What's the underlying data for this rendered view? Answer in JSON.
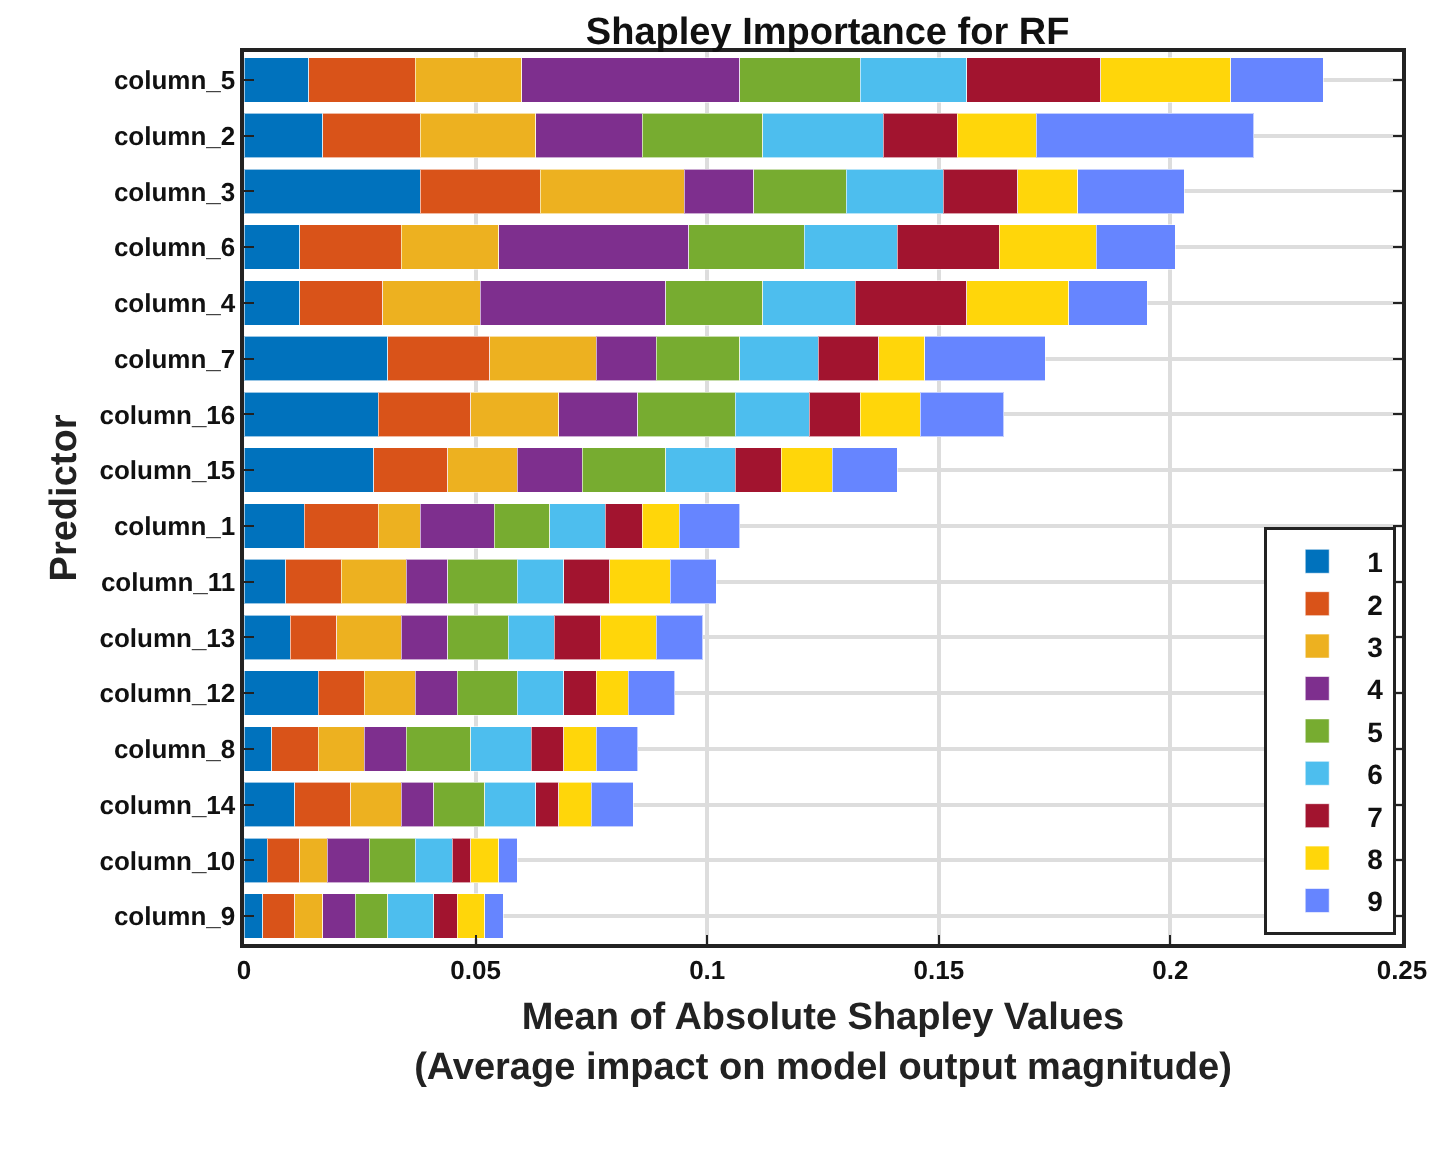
{
  "chart_data": {
    "type": "bar",
    "orientation": "horizontal",
    "stacked": true,
    "title": "Shapley Importance for RF",
    "xlabel": "Mean of Absolute Shapley Values\n(Average impact on model output magnitude)",
    "ylabel": "Predictor",
    "categories": [
      "column_5",
      "column_2",
      "column_3",
      "column_6",
      "column_4",
      "column_7",
      "column_16",
      "column_15",
      "column_1",
      "column_11",
      "column_13",
      "column_12",
      "column_8",
      "column_14",
      "column_10",
      "column_9"
    ],
    "xlim": [
      0,
      0.25
    ],
    "xticks": [
      0,
      0.05,
      0.1,
      0.15,
      0.2,
      0.25
    ],
    "grid": true,
    "legend": "bottom right",
    "series": [
      {
        "name": "1",
        "color": "#0072bd",
        "values": [
          0.014,
          0.017,
          0.038,
          0.012,
          0.012,
          0.031,
          0.029,
          0.028,
          0.013,
          0.009,
          0.01,
          0.016,
          0.006,
          0.011,
          0.005,
          0.004
        ]
      },
      {
        "name": "2",
        "color": "#d95319",
        "values": [
          0.023,
          0.021,
          0.026,
          0.022,
          0.018,
          0.022,
          0.02,
          0.016,
          0.016,
          0.012,
          0.01,
          0.01,
          0.01,
          0.012,
          0.007,
          0.007
        ]
      },
      {
        "name": "3",
        "color": "#edb120",
        "values": [
          0.023,
          0.025,
          0.031,
          0.021,
          0.021,
          0.023,
          0.019,
          0.015,
          0.009,
          0.014,
          0.014,
          0.011,
          0.01,
          0.011,
          0.006,
          0.006
        ]
      },
      {
        "name": "4",
        "color": "#7e2f8e",
        "values": [
          0.047,
          0.023,
          0.015,
          0.041,
          0.04,
          0.013,
          0.017,
          0.014,
          0.016,
          0.009,
          0.01,
          0.009,
          0.009,
          0.007,
          0.009,
          0.007
        ]
      },
      {
        "name": "5",
        "color": "#77ac30",
        "values": [
          0.026,
          0.026,
          0.02,
          0.025,
          0.021,
          0.018,
          0.021,
          0.018,
          0.012,
          0.015,
          0.013,
          0.013,
          0.014,
          0.011,
          0.01,
          0.007
        ]
      },
      {
        "name": "6",
        "color": "#4dbeee",
        "values": [
          0.023,
          0.026,
          0.021,
          0.02,
          0.02,
          0.017,
          0.016,
          0.015,
          0.012,
          0.01,
          0.01,
          0.01,
          0.013,
          0.011,
          0.008,
          0.01
        ]
      },
      {
        "name": "7",
        "color": "#a2142f",
        "values": [
          0.029,
          0.016,
          0.016,
          0.022,
          0.024,
          0.013,
          0.011,
          0.01,
          0.008,
          0.01,
          0.01,
          0.007,
          0.007,
          0.005,
          0.004,
          0.005
        ]
      },
      {
        "name": "8",
        "color": "#ffd60a",
        "values": [
          0.028,
          0.017,
          0.013,
          0.021,
          0.022,
          0.01,
          0.013,
          0.011,
          0.008,
          0.013,
          0.012,
          0.007,
          0.007,
          0.007,
          0.006,
          0.006
        ]
      },
      {
        "name": "9",
        "color": "#6685ff",
        "values": [
          0.02,
          0.047,
          0.023,
          0.017,
          0.017,
          0.026,
          0.018,
          0.014,
          0.013,
          0.01,
          0.01,
          0.01,
          0.009,
          0.009,
          0.004,
          0.004
        ]
      }
    ]
  }
}
